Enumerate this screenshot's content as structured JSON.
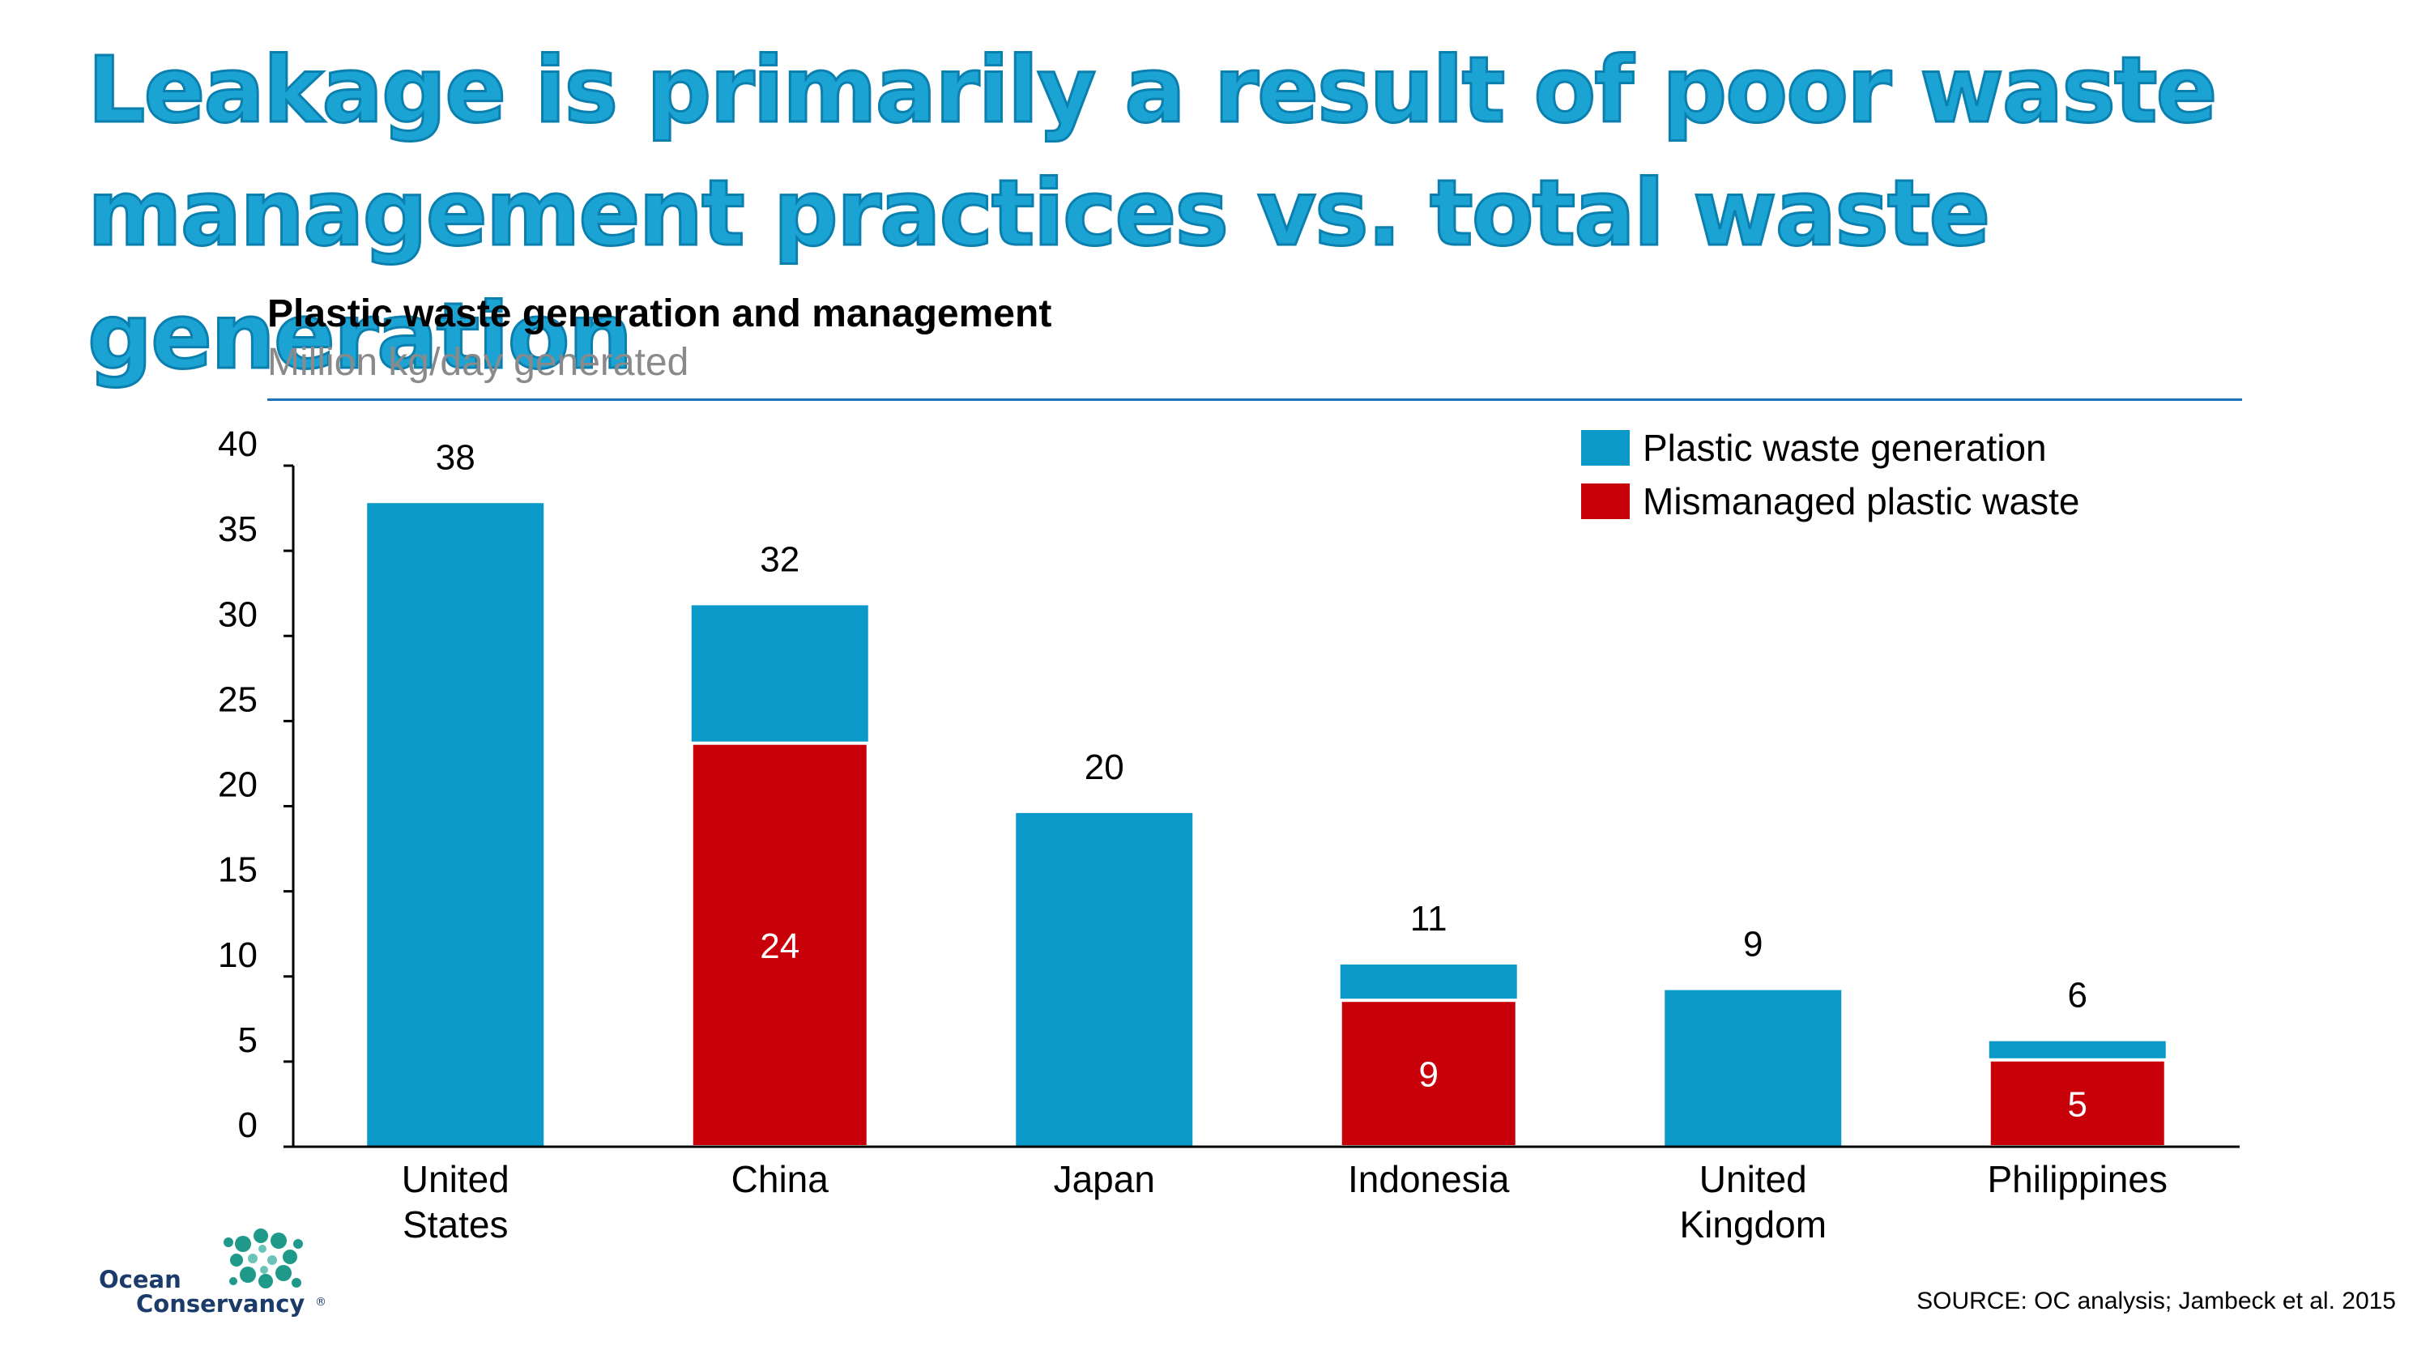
{
  "title": "Leakage is primarily a result of poor waste management practices vs. total waste generation",
  "chart_data": {
    "type": "bar",
    "title": "Plastic waste generation and management",
    "subtitle": "Million kg/day generated",
    "categories": [
      "United States",
      "China",
      "Japan",
      "Indonesia",
      "United Kingdom",
      "Philippines"
    ],
    "category_lines": [
      [
        "United",
        "States"
      ],
      [
        "China"
      ],
      [
        "Japan"
      ],
      [
        "Indonesia"
      ],
      [
        "United",
        "Kingdom"
      ],
      [
        "Philippines"
      ]
    ],
    "series": [
      {
        "name": "Plastic waste generation",
        "values": [
          37.8,
          31.8,
          19.6,
          10.7,
          9.2,
          6.2
        ],
        "labels": [
          "38",
          "32",
          "20",
          "11",
          "9",
          "6"
        ],
        "color": "#0a99c9"
      },
      {
        "name": "Mismanaged plastic waste",
        "values": [
          null,
          23.7,
          null,
          8.6,
          null,
          5.1
        ],
        "labels": [
          null,
          "24",
          null,
          "9",
          null,
          "5"
        ],
        "color": "#c8000a"
      }
    ],
    "overlay": "mismanaged bar drawn over generation bar",
    "ylim": [
      0,
      40
    ],
    "yticks": [
      0,
      5,
      10,
      15,
      20,
      25,
      30,
      35,
      40
    ],
    "grid": false,
    "legend_position": "top-right"
  },
  "colors": {
    "title": "#1aa3d3",
    "rule": "#1f72b8",
    "generation": "#0a99c9",
    "mismanaged": "#c8000a"
  },
  "logo": {
    "line1": "Ocean",
    "line2": "Conservancy",
    "mark": "®"
  },
  "source": "SOURCE: OC analysis; Jambeck et al. 2015"
}
